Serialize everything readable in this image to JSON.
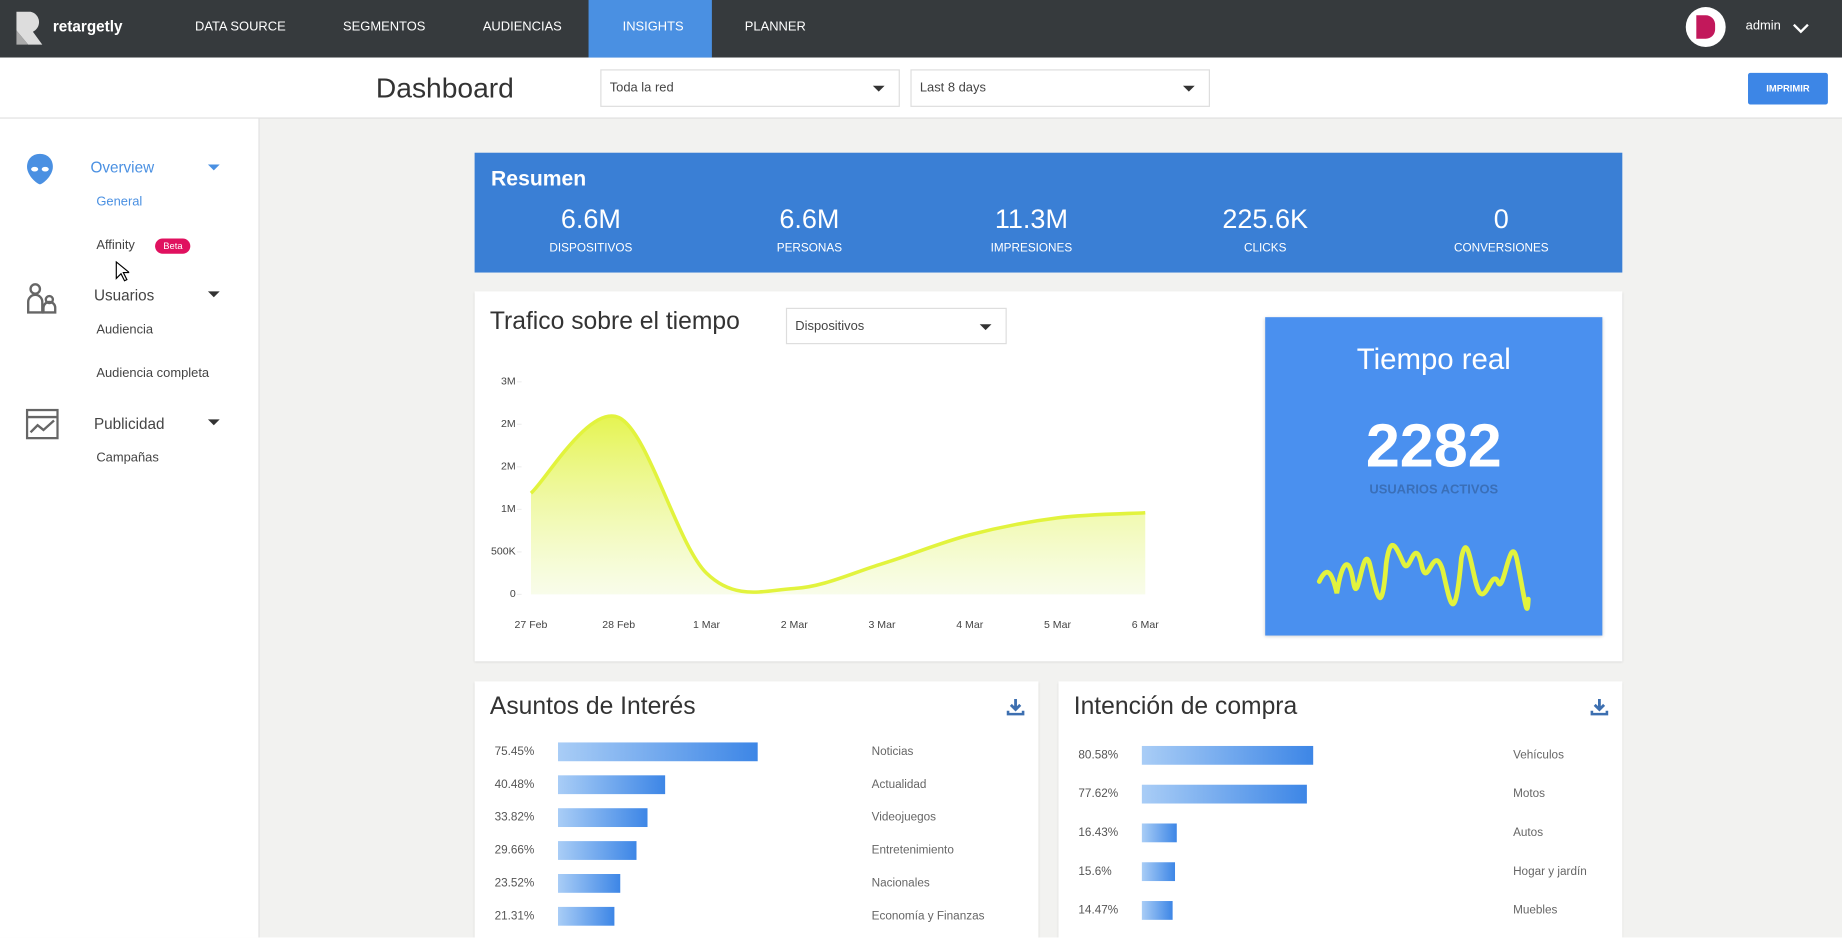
{
  "nav": {
    "brand": "retargetly",
    "items": [
      "DATA SOURCE",
      "SEGMENTOS",
      "AUDIENCIAS",
      "INSIGHTS",
      "PLANNER"
    ],
    "active": 3,
    "user": "admin"
  },
  "header": {
    "title": "Dashboard",
    "filters": [
      "Toda la red",
      "Last 8 days"
    ],
    "button": "IMPRIMIR"
  },
  "sidebar": [
    {
      "label": "Overview",
      "items": [
        "General",
        "Affinity"
      ],
      "badge": "Beta"
    },
    {
      "label": "Usuarios",
      "items": [
        "Audiencia",
        "Audiencia completa"
      ]
    },
    {
      "label": "Publicidad",
      "items": [
        "Campañas"
      ]
    }
  ],
  "summary": {
    "title": "Resumen",
    "metrics": [
      {
        "value": "6.6M",
        "label": "DISPOSITIVOS"
      },
      {
        "value": "6.6M",
        "label": "PERSONAS"
      },
      {
        "value": "11.3M",
        "label": "IMPRESIONES"
      },
      {
        "value": "225.6K",
        "label": "CLICKS"
      },
      {
        "value": "0",
        "label": "CONVERSIONES"
      }
    ]
  },
  "selector": "Dispositivos",
  "realtime": {
    "title": "Tiempo real",
    "value": "2282",
    "label": "USUARIOS ACTIVOS"
  },
  "chart_data": [
    {
      "type": "line",
      "title": "Trafico sobre el tiempo",
      "categories": [
        "27 Feb",
        "28 Feb",
        "1 Mar",
        "2 Mar",
        "3 Mar",
        "4 Mar",
        "5 Mar",
        "6 Mar"
      ],
      "series": [
        {
          "name": "Dispositivos",
          "color": "#e2f33d",
          "values": [
            1190000,
            2080000,
            250000,
            70000,
            360000,
            700000,
            900000,
            960000
          ]
        }
      ],
      "ylim": [
        0,
        2500000
      ],
      "yticks": [
        {
          "value": 0,
          "label": "0"
        },
        {
          "value": 500000,
          "label": "500K"
        },
        {
          "value": 1000000,
          "label": "1M"
        },
        {
          "value": 1500000,
          "label": "2M"
        },
        {
          "value": 2000000,
          "label": "2M"
        },
        {
          "value": 2500000,
          "label": "3M"
        }
      ]
    },
    {
      "type": "hbar",
      "title": "Asuntos de Interés",
      "color": "#3d86e6",
      "categories": [
        "Noticias",
        "Actualidad",
        "Videojuegos",
        "Entretenimiento",
        "Nacionales",
        "Economía y Finanzas"
      ],
      "values": [
        75.45,
        40.48,
        33.82,
        29.66,
        23.52,
        21.31
      ],
      "value_labels": [
        "75.45%",
        "40.48%",
        "33.82%",
        "29.66%",
        "23.52%",
        "21.31%"
      ]
    },
    {
      "type": "hbar",
      "title": "Intención de compra",
      "color": "#3d86e6",
      "categories": [
        "Vehículos",
        "Motos",
        "Autos",
        "Hogar y jardín",
        "Muebles"
      ],
      "values": [
        80.58,
        77.62,
        16.43,
        15.6,
        14.47
      ],
      "value_labels": [
        "80.58%",
        "77.62%",
        "16.43%",
        "15.6%",
        "14.47%"
      ]
    }
  ]
}
